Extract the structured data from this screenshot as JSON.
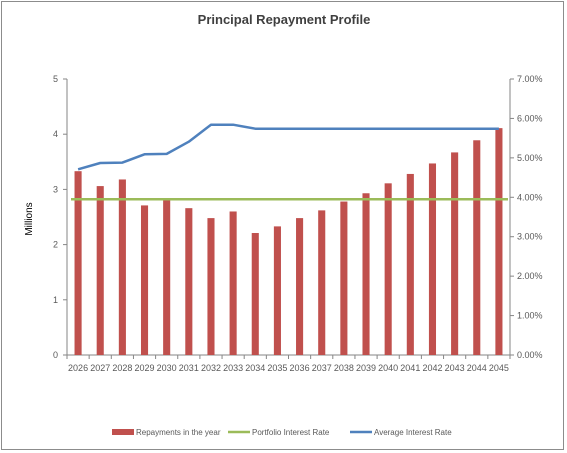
{
  "chart_data": {
    "type": "bar",
    "title": "Principal Repayment Profile",
    "xlabel": "",
    "ylabel": "Millions",
    "ylim": [
      0,
      5
    ],
    "y_ticks": [
      "0",
      "1",
      "2",
      "3",
      "4",
      "5"
    ],
    "y2lim": [
      0,
      0.07
    ],
    "y2_ticks": [
      "0.00%",
      "1.00%",
      "2.00%",
      "3.00%",
      "4.00%",
      "5.00%",
      "6.00%",
      "7.00%"
    ],
    "categories": [
      "2026",
      "2027",
      "2028",
      "2029",
      "2030",
      "2031",
      "2032",
      "2033",
      "2034",
      "2035",
      "2036",
      "2037",
      "2038",
      "2039",
      "2040",
      "2041",
      "2042",
      "2043",
      "2044",
      "2045"
    ],
    "grid": false,
    "legend_position": "bottom",
    "series": [
      {
        "name": "Repayments in the year",
        "type": "bar",
        "axis": "left",
        "color": "#c0504d",
        "values": [
          3.33,
          3.06,
          3.18,
          2.71,
          2.8,
          2.66,
          2.48,
          2.6,
          2.21,
          2.33,
          2.48,
          2.62,
          2.78,
          2.93,
          3.11,
          3.28,
          3.47,
          3.67,
          3.89,
          4.11
        ]
      },
      {
        "name": "Portfolio Interest Rate",
        "type": "line",
        "axis": "right",
        "color": "#9bbb59",
        "values": [
          0.0395,
          0.0395,
          0.0395,
          0.0395,
          0.0395,
          0.0395,
          0.0395,
          0.0395,
          0.0395,
          0.0395,
          0.0395,
          0.0395,
          0.0395,
          0.0395,
          0.0395,
          0.0395,
          0.0395,
          0.0395,
          0.0395,
          0.0395
        ]
      },
      {
        "name": "Average Interest Rate",
        "type": "line",
        "axis": "right",
        "color": "#4f81bd",
        "values": [
          0.0471,
          0.0487,
          0.0488,
          0.0509,
          0.051,
          0.0541,
          0.0584,
          0.0584,
          0.0574,
          0.0574,
          0.0574,
          0.0574,
          0.0574,
          0.0574,
          0.0574,
          0.0574,
          0.0574,
          0.0574,
          0.0574,
          0.0574
        ]
      }
    ]
  }
}
